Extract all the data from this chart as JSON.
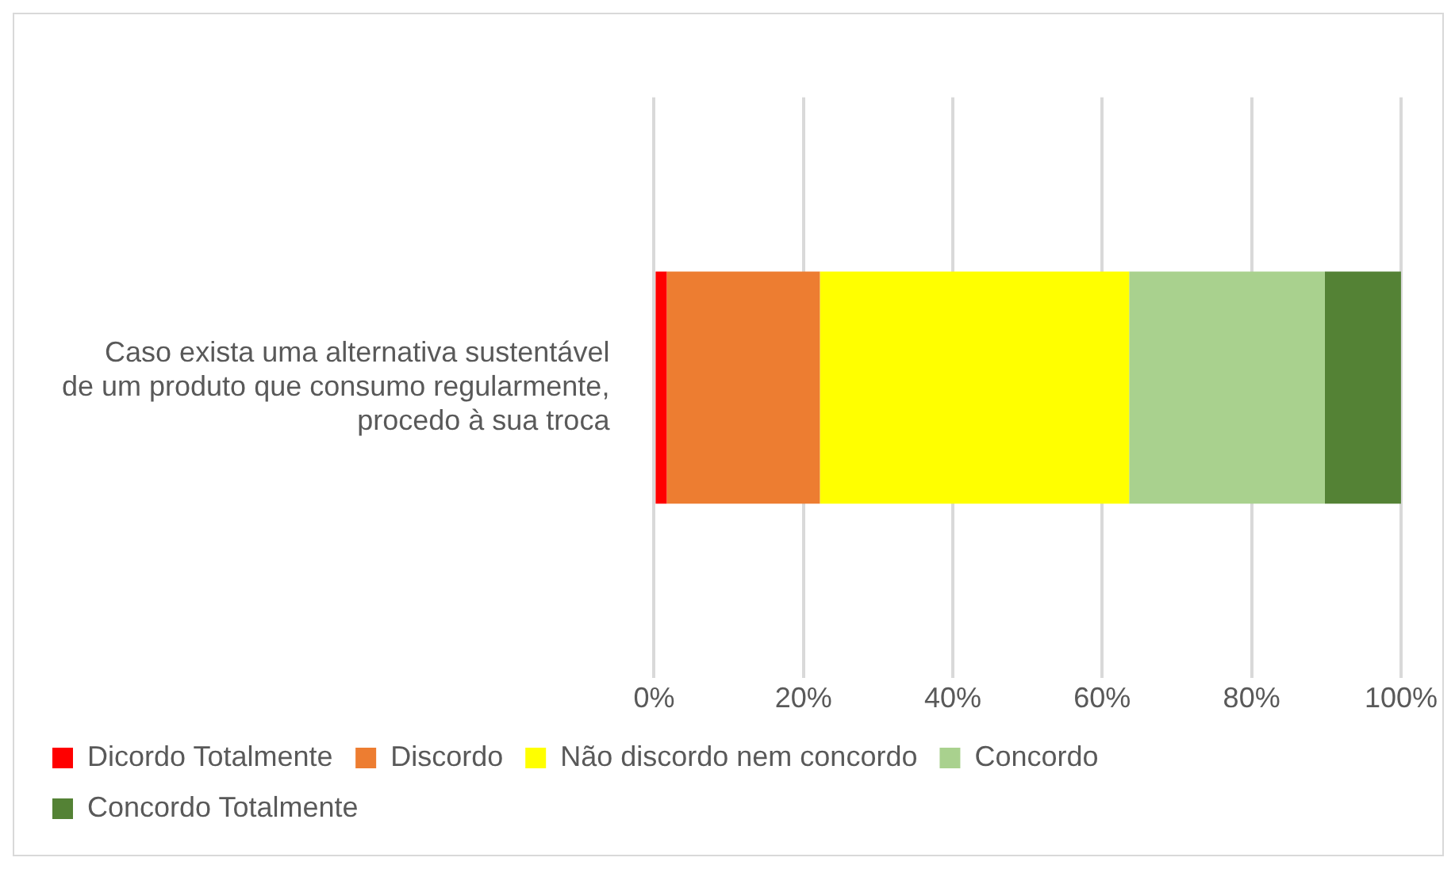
{
  "chart_data": {
    "type": "bar",
    "orientation": "horizontal",
    "stacked": true,
    "categories": [
      "Caso exista uma alternativa sustentável de um produto que consumo regularmente, procedo à sua troca"
    ],
    "series": [
      {
        "name": "Dicordo Totalmente",
        "color": "#ff0000",
        "values": [
          1.7
        ]
      },
      {
        "name": "Discordo",
        "color": "#ed7d31",
        "values": [
          20.5
        ]
      },
      {
        "name": "Não discordo nem concordo",
        "color": "#ffff00",
        "values": [
          41.4
        ]
      },
      {
        "name": "Concordo",
        "color": "#a9d18e",
        "values": [
          26.2
        ]
      },
      {
        "name": "Concordo Totalmente",
        "color": "#548235",
        "values": [
          10.2
        ]
      }
    ],
    "xlim": [
      0,
      100
    ],
    "xticks": [
      {
        "value": 0,
        "label": "0%"
      },
      {
        "value": 20,
        "label": "20%"
      },
      {
        "value": 40,
        "label": "40%"
      },
      {
        "value": 60,
        "label": "60%"
      },
      {
        "value": 80,
        "label": "80%"
      },
      {
        "value": 100,
        "label": "100%"
      }
    ],
    "grid": "x",
    "legend": "bottom"
  }
}
